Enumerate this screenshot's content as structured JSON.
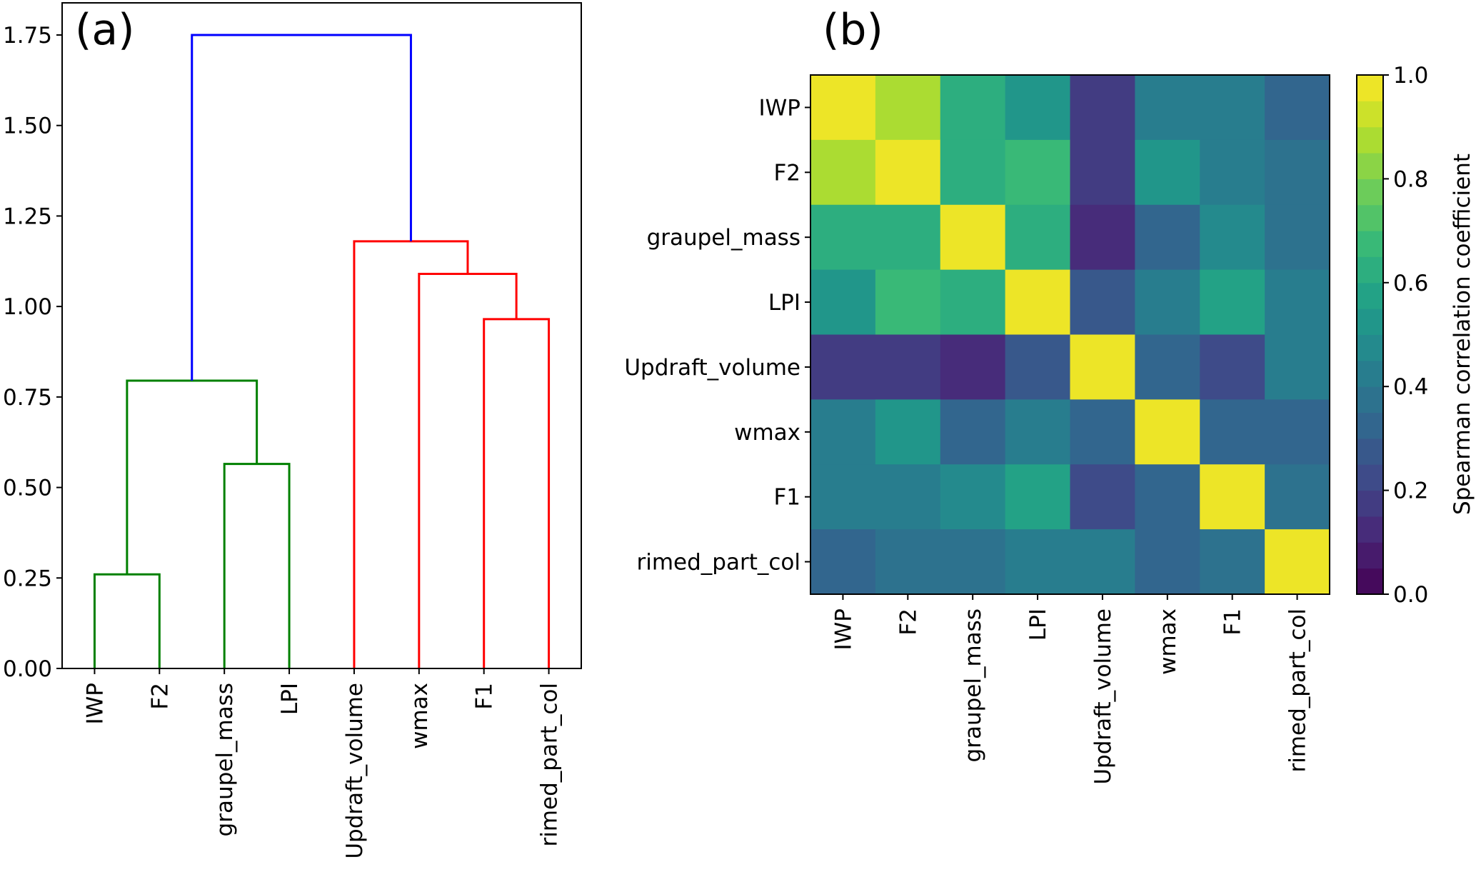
{
  "chart_data": [
    {
      "type": "dendrogram",
      "panel_label": "(a)",
      "leaves": [
        "IWP",
        "F2",
        "graupel_mass",
        "LPI",
        "Updraft_volume",
        "wmax",
        "F1",
        "rimed_part_col"
      ],
      "ylim": [
        0,
        1.75
      ],
      "yticks": [
        0.0,
        0.25,
        0.5,
        0.75,
        1.0,
        1.25,
        1.5,
        1.75
      ],
      "ytick_labels": [
        "0.00",
        "0.25",
        "0.50",
        "0.75",
        "1.00",
        "1.25",
        "1.50",
        "1.75"
      ],
      "links": [
        {
          "left": "IWP",
          "right": "F2",
          "height": 0.26,
          "cluster": "green"
        },
        {
          "left": "graupel_mass",
          "right": "LPI",
          "height": 0.565,
          "cluster": "green"
        },
        {
          "left": "IWP+F2",
          "right": "graupel_mass+LPI",
          "height": 0.795,
          "cluster": "green"
        },
        {
          "left": "F1",
          "right": "rimed_part_col",
          "height": 0.965,
          "cluster": "red"
        },
        {
          "left": "wmax",
          "right": "F1+rimed_part_col",
          "height": 1.09,
          "cluster": "red"
        },
        {
          "left": "Updraft_volume",
          "right": "wmax+F1+rimed_part_col",
          "height": 1.18,
          "cluster": "red"
        },
        {
          "left": "IWP+F2+graupel_mass+LPI",
          "right": "Updraft_volume+wmax+F1+rimed_part_col",
          "height": 1.75,
          "cluster": "blue"
        }
      ],
      "colors": {
        "green": "#008000",
        "red": "#ff0000",
        "blue": "#0000ff"
      }
    },
    {
      "type": "heatmap",
      "panel_label": "(b)",
      "labels": [
        "IWP",
        "F2",
        "graupel_mass",
        "LPI",
        "Updraft_volume",
        "wmax",
        "F1",
        "rimed_part_col"
      ],
      "matrix": [
        [
          1.0,
          0.88,
          0.62,
          0.54,
          0.16,
          0.4,
          0.4,
          0.32
        ],
        [
          0.88,
          1.0,
          0.62,
          0.68,
          0.16,
          0.52,
          0.4,
          0.36
        ],
        [
          0.62,
          0.62,
          1.0,
          0.62,
          0.14,
          0.32,
          0.46,
          0.36
        ],
        [
          0.54,
          0.68,
          0.62,
          1.0,
          0.28,
          0.44,
          0.56,
          0.44
        ],
        [
          0.16,
          0.16,
          0.14,
          0.28,
          1.0,
          0.34,
          0.24,
          0.4
        ],
        [
          0.4,
          0.52,
          0.32,
          0.44,
          0.34,
          1.0,
          0.32,
          0.32
        ],
        [
          0.4,
          0.4,
          0.46,
          0.56,
          0.24,
          0.32,
          1.0,
          0.38
        ],
        [
          0.32,
          0.36,
          0.36,
          0.44,
          0.4,
          0.32,
          0.38,
          1.0
        ]
      ],
      "colormap": "viridis",
      "colorbar": {
        "label": "Spearman correlation coefficient",
        "range": [
          0.0,
          1.0
        ],
        "bins": 20,
        "ticks": [
          0.0,
          0.2,
          0.4,
          0.6,
          0.8,
          1.0
        ],
        "tick_labels": [
          "0.0",
          "0.2",
          "0.4",
          "0.6",
          "0.8",
          "1.0"
        ]
      }
    }
  ]
}
